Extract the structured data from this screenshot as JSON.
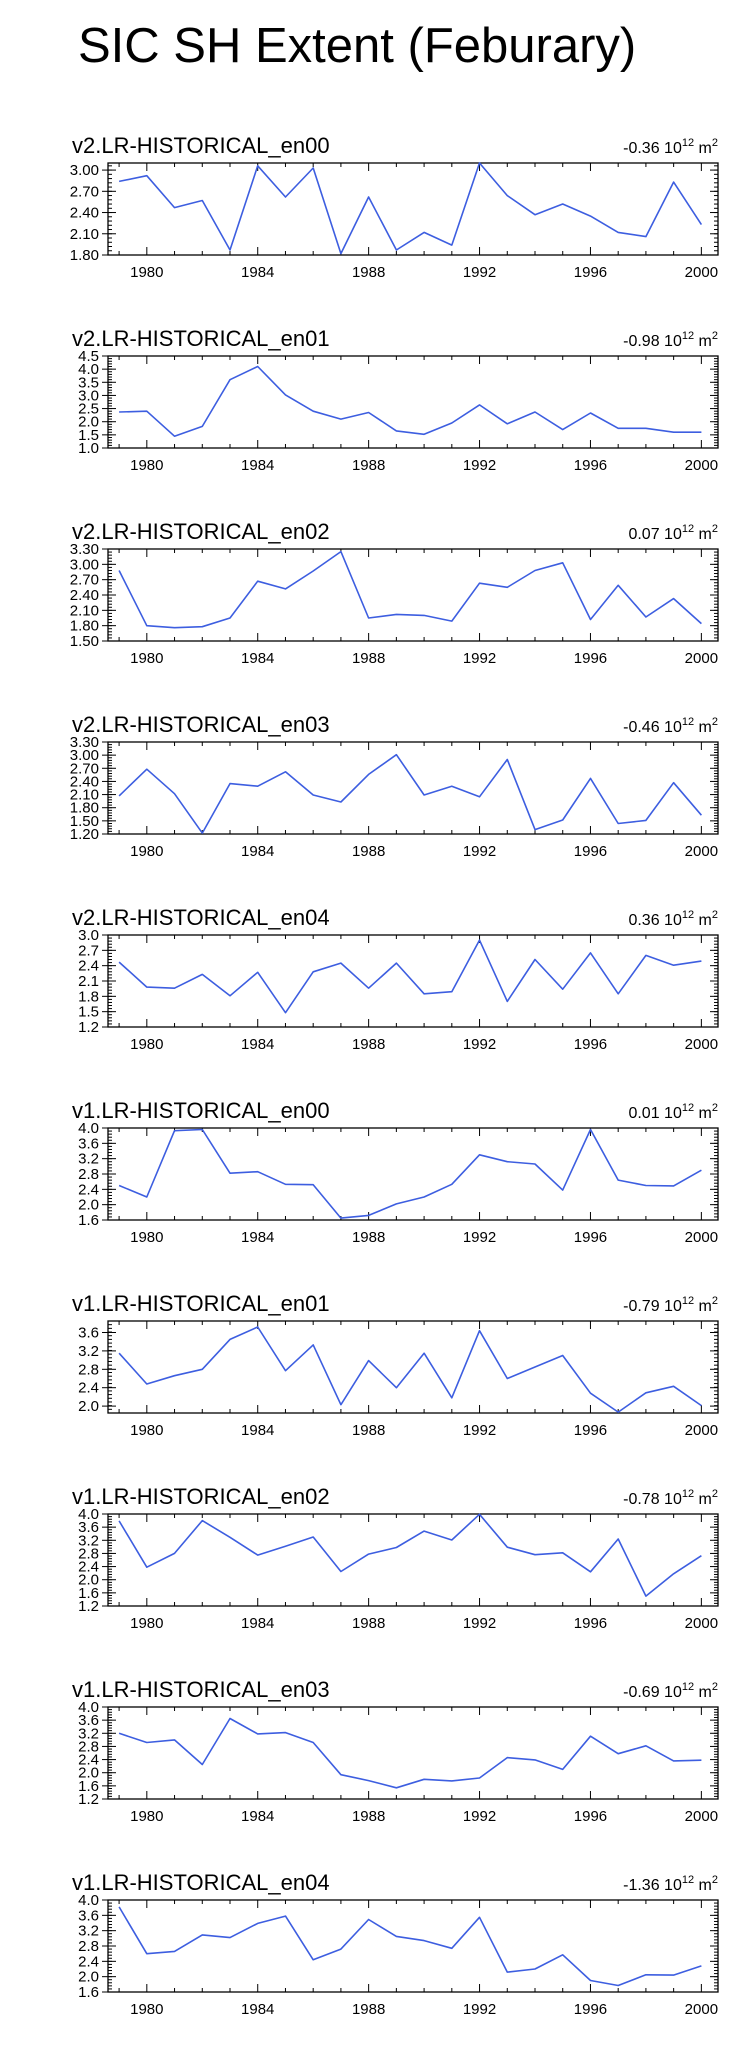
{
  "page": {
    "title": "SIC SH Extent (Feburary)"
  },
  "chart_data": [
    {
      "type": "line",
      "title": "v2.LR-HISTORICAL_en00",
      "trend": "-0.36",
      "trend_exp": "12",
      "trend_unit": "m",
      "trend_unit_exp": "2",
      "x": [
        1979,
        1980,
        1981,
        1982,
        1983,
        1984,
        1985,
        1986,
        1987,
        1988,
        1989,
        1990,
        1991,
        1992,
        1993,
        1994,
        1995,
        1996,
        1997,
        1998,
        1999,
        2000
      ],
      "values": [
        2.84,
        2.92,
        2.47,
        2.57,
        1.87,
        3.06,
        2.62,
        3.03,
        1.82,
        2.62,
        1.87,
        2.12,
        1.94,
        3.1,
        2.64,
        2.37,
        2.52,
        2.35,
        2.12,
        2.06,
        2.83,
        2.23
      ],
      "ylim": [
        1.8,
        3.1
      ],
      "yticks": [
        1.8,
        2.1,
        2.4,
        2.7,
        3.0
      ],
      "ytick_labels": [
        "1.80",
        "2.10",
        "2.40",
        "2.70",
        "3.00"
      ],
      "xlim": [
        1978.6,
        2000.6
      ],
      "xticks": [
        1980,
        1984,
        1988,
        1992,
        1996,
        2000
      ],
      "xtick_labels": [
        "1980",
        "1984",
        "1988",
        "1992",
        "1996",
        "2000"
      ],
      "color": "#3d5ee0"
    },
    {
      "type": "line",
      "title": "v2.LR-HISTORICAL_en01",
      "trend": "-0.98",
      "trend_exp": "12",
      "trend_unit": "m",
      "trend_unit_exp": "2",
      "x": [
        1979,
        1980,
        1981,
        1982,
        1983,
        1984,
        1985,
        1986,
        1987,
        1988,
        1989,
        1990,
        1991,
        1992,
        1993,
        1994,
        1995,
        1996,
        1997,
        1998,
        1999,
        2000
      ],
      "values": [
        2.37,
        2.4,
        1.45,
        1.82,
        3.6,
        4.1,
        3.02,
        2.4,
        2.1,
        2.35,
        1.65,
        1.52,
        1.95,
        2.64,
        1.92,
        2.37,
        1.7,
        2.33,
        1.75,
        1.75,
        1.6,
        1.6
      ],
      "ylim": [
        1.0,
        4.5
      ],
      "yticks": [
        1.0,
        1.5,
        2.0,
        2.5,
        3.0,
        3.5,
        4.0,
        4.5
      ],
      "ytick_labels": [
        "1.0",
        "1.5",
        "2.0",
        "2.5",
        "3.0",
        "3.5",
        "4.0",
        "4.5"
      ],
      "xlim": [
        1978.6,
        2000.6
      ],
      "xticks": [
        1980,
        1984,
        1988,
        1992,
        1996,
        2000
      ],
      "xtick_labels": [
        "1980",
        "1984",
        "1988",
        "1992",
        "1996",
        "2000"
      ],
      "color": "#3d5ee0"
    },
    {
      "type": "line",
      "title": "v2.LR-HISTORICAL_en02",
      "trend": "0.07",
      "trend_exp": "12",
      "trend_unit": "m",
      "trend_unit_exp": "2",
      "x": [
        1979,
        1980,
        1981,
        1982,
        1983,
        1984,
        1985,
        1986,
        1987,
        1988,
        1989,
        1990,
        1991,
        1992,
        1993,
        1994,
        1995,
        1996,
        1997,
        1998,
        1999,
        2000
      ],
      "values": [
        2.88,
        1.8,
        1.76,
        1.78,
        1.95,
        2.67,
        2.52,
        2.87,
        3.25,
        1.95,
        2.02,
        2.0,
        1.89,
        2.63,
        2.55,
        2.88,
        3.03,
        1.92,
        2.59,
        1.97,
        2.33,
        1.84
      ],
      "ylim": [
        1.5,
        3.3
      ],
      "yticks": [
        1.5,
        1.8,
        2.1,
        2.4,
        2.7,
        3.0,
        3.3
      ],
      "ytick_labels": [
        "1.50",
        "1.80",
        "2.10",
        "2.40",
        "2.70",
        "3.00",
        "3.30"
      ],
      "xlim": [
        1978.6,
        2000.6
      ],
      "xticks": [
        1980,
        1984,
        1988,
        1992,
        1996,
        2000
      ],
      "xtick_labels": [
        "1980",
        "1984",
        "1988",
        "1992",
        "1996",
        "2000"
      ],
      "color": "#3d5ee0"
    },
    {
      "type": "line",
      "title": "v2.LR-HISTORICAL_en03",
      "trend": "-0.46",
      "trend_exp": "12",
      "trend_unit": "m",
      "trend_unit_exp": "2",
      "x": [
        1979,
        1980,
        1981,
        1982,
        1983,
        1984,
        1985,
        1986,
        1987,
        1988,
        1989,
        1990,
        1991,
        1992,
        1993,
        1994,
        1995,
        1996,
        1997,
        1998,
        1999,
        2000
      ],
      "values": [
        2.07,
        2.68,
        2.12,
        1.22,
        2.35,
        2.29,
        2.62,
        2.09,
        1.93,
        2.56,
        3.01,
        2.09,
        2.29,
        2.05,
        2.9,
        1.3,
        1.52,
        2.47,
        1.44,
        1.51,
        2.37,
        1.63
      ],
      "ylim": [
        1.2,
        3.3
      ],
      "yticks": [
        1.2,
        1.5,
        1.8,
        2.1,
        2.4,
        2.7,
        3.0,
        3.3
      ],
      "ytick_labels": [
        "1.20",
        "1.50",
        "1.80",
        "2.10",
        "2.40",
        "2.70",
        "3.00",
        "3.30"
      ],
      "xlim": [
        1978.6,
        2000.6
      ],
      "xticks": [
        1980,
        1984,
        1988,
        1992,
        1996,
        2000
      ],
      "xtick_labels": [
        "1980",
        "1984",
        "1988",
        "1992",
        "1996",
        "2000"
      ],
      "color": "#3d5ee0"
    },
    {
      "type": "line",
      "title": "v2.LR-HISTORICAL_en04",
      "trend": "0.36",
      "trend_exp": "12",
      "trend_unit": "m",
      "trend_unit_exp": "2",
      "x": [
        1979,
        1980,
        1981,
        1982,
        1983,
        1984,
        1985,
        1986,
        1987,
        1988,
        1989,
        1990,
        1991,
        1992,
        1993,
        1994,
        1995,
        1996,
        1997,
        1998,
        1999,
        2000
      ],
      "values": [
        2.47,
        1.98,
        1.96,
        2.23,
        1.81,
        2.27,
        1.48,
        2.28,
        2.45,
        1.96,
        2.45,
        1.85,
        1.89,
        2.9,
        1.7,
        2.52,
        1.94,
        2.65,
        1.85,
        2.6,
        2.41,
        2.49
      ],
      "ylim": [
        1.2,
        3.0
      ],
      "yticks": [
        1.2,
        1.5,
        1.8,
        2.1,
        2.4,
        2.7,
        3.0
      ],
      "ytick_labels": [
        "1.2",
        "1.5",
        "1.8",
        "2.1",
        "2.4",
        "2.7",
        "3.0"
      ],
      "xlim": [
        1978.6,
        2000.6
      ],
      "xticks": [
        1980,
        1984,
        1988,
        1992,
        1996,
        2000
      ],
      "xtick_labels": [
        "1980",
        "1984",
        "1988",
        "1992",
        "1996",
        "2000"
      ],
      "color": "#3d5ee0"
    },
    {
      "type": "line",
      "title": "v1.LR-HISTORICAL_en00",
      "trend": "0.01",
      "trend_exp": "12",
      "trend_unit": "m",
      "trend_unit_exp": "2",
      "x": [
        1979,
        1980,
        1981,
        1982,
        1983,
        1984,
        1985,
        1986,
        1987,
        1988,
        1989,
        1990,
        1991,
        1992,
        1993,
        1994,
        1995,
        1996,
        1997,
        1998,
        1999,
        2000
      ],
      "values": [
        2.5,
        2.2,
        3.93,
        3.96,
        2.82,
        2.86,
        2.53,
        2.52,
        1.65,
        1.72,
        2.02,
        2.2,
        2.53,
        3.3,
        3.12,
        3.06,
        2.38,
        3.96,
        2.64,
        2.5,
        2.49,
        2.9
      ],
      "ylim": [
        1.6,
        4.0
      ],
      "yticks": [
        1.6,
        2.0,
        2.4,
        2.8,
        3.2,
        3.6,
        4.0
      ],
      "ytick_labels": [
        "1.6",
        "2.0",
        "2.4",
        "2.8",
        "3.2",
        "3.6",
        "4.0"
      ],
      "xlim": [
        1978.6,
        2000.6
      ],
      "xticks": [
        1980,
        1984,
        1988,
        1992,
        1996,
        2000
      ],
      "xtick_labels": [
        "1980",
        "1984",
        "1988",
        "1992",
        "1996",
        "2000"
      ],
      "color": "#3d5ee0"
    },
    {
      "type": "line",
      "title": "v1.LR-HISTORICAL_en01",
      "trend": "-0.79",
      "trend_exp": "12",
      "trend_unit": "m",
      "trend_unit_exp": "2",
      "x": [
        1979,
        1980,
        1981,
        1982,
        1983,
        1984,
        1985,
        1986,
        1987,
        1988,
        1989,
        1990,
        1991,
        1992,
        1993,
        1994,
        1995,
        1996,
        1997,
        1998,
        1999,
        2000
      ],
      "values": [
        3.15,
        2.48,
        2.66,
        2.8,
        3.45,
        3.72,
        2.77,
        3.33,
        2.03,
        2.99,
        2.4,
        3.15,
        2.18,
        3.64,
        2.6,
        2.85,
        3.1,
        2.28,
        1.87,
        2.29,
        2.43,
        2.01
      ],
      "ylim": [
        1.85,
        3.85
      ],
      "yticks": [
        2.0,
        2.4,
        2.8,
        3.2,
        3.6
      ],
      "ytick_labels": [
        "2.0",
        "2.4",
        "2.8",
        "3.2",
        "3.6"
      ],
      "xlim": [
        1978.6,
        2000.6
      ],
      "xticks": [
        1980,
        1984,
        1988,
        1992,
        1996,
        2000
      ],
      "xtick_labels": [
        "1980",
        "1984",
        "1988",
        "1992",
        "1996",
        "2000"
      ],
      "color": "#3d5ee0"
    },
    {
      "type": "line",
      "title": "v1.LR-HISTORICAL_en02",
      "trend": "-0.78",
      "trend_exp": "12",
      "trend_unit": "m",
      "trend_unit_exp": "2",
      "x": [
        1979,
        1980,
        1981,
        1982,
        1983,
        1984,
        1985,
        1986,
        1987,
        1988,
        1989,
        1990,
        1991,
        1992,
        1993,
        1994,
        1995,
        1996,
        1997,
        1998,
        1999,
        2000
      ],
      "values": [
        3.79,
        2.38,
        2.8,
        3.8,
        3.29,
        2.75,
        3.02,
        3.3,
        2.25,
        2.78,
        2.98,
        3.48,
        3.21,
        3.99,
        2.99,
        2.76,
        2.82,
        2.24,
        3.24,
        1.5,
        2.18,
        2.73
      ],
      "ylim": [
        1.2,
        4.0
      ],
      "yticks": [
        1.2,
        1.6,
        2.0,
        2.4,
        2.8,
        3.2,
        3.6,
        4.0
      ],
      "ytick_labels": [
        "1.2",
        "1.6",
        "2.0",
        "2.4",
        "2.8",
        "3.2",
        "3.6",
        "4.0"
      ],
      "xlim": [
        1978.6,
        2000.6
      ],
      "xticks": [
        1980,
        1984,
        1988,
        1992,
        1996,
        2000
      ],
      "xtick_labels": [
        "1980",
        "1984",
        "1988",
        "1992",
        "1996",
        "2000"
      ],
      "color": "#3d5ee0"
    },
    {
      "type": "line",
      "title": "v1.LR-HISTORICAL_en03",
      "trend": "-0.69",
      "trend_exp": "12",
      "trend_unit": "m",
      "trend_unit_exp": "2",
      "x": [
        1979,
        1980,
        1981,
        1982,
        1983,
        1984,
        1985,
        1986,
        1987,
        1988,
        1989,
        1990,
        1991,
        1992,
        1993,
        1994,
        1995,
        1996,
        1997,
        1998,
        1999,
        2000
      ],
      "values": [
        3.2,
        2.92,
        3.0,
        2.25,
        3.65,
        3.18,
        3.22,
        2.92,
        1.94,
        1.76,
        1.54,
        1.8,
        1.75,
        1.84,
        2.46,
        2.39,
        2.1,
        3.11,
        2.58,
        2.82,
        2.36,
        2.38
      ],
      "ylim": [
        1.2,
        4.0
      ],
      "yticks": [
        1.2,
        1.6,
        2.0,
        2.4,
        2.8,
        3.2,
        3.6,
        4.0
      ],
      "ytick_labels": [
        "1.2",
        "1.6",
        "2.0",
        "2.4",
        "2.8",
        "3.2",
        "3.6",
        "4.0"
      ],
      "xlim": [
        1978.6,
        2000.6
      ],
      "xticks": [
        1980,
        1984,
        1988,
        1992,
        1996,
        2000
      ],
      "xtick_labels": [
        "1980",
        "1984",
        "1988",
        "1992",
        "1996",
        "2000"
      ],
      "color": "#3d5ee0"
    },
    {
      "type": "line",
      "title": "v1.LR-HISTORICAL_en04",
      "trend": "-1.36",
      "trend_exp": "12",
      "trend_unit": "m",
      "trend_unit_exp": "2",
      "x": [
        1979,
        1980,
        1981,
        1982,
        1983,
        1984,
        1985,
        1986,
        1987,
        1988,
        1989,
        1990,
        1991,
        1992,
        1993,
        1994,
        1995,
        1996,
        1997,
        1998,
        1999,
        2000
      ],
      "values": [
        3.82,
        2.6,
        2.66,
        3.09,
        3.02,
        3.39,
        3.58,
        2.44,
        2.72,
        3.49,
        3.05,
        2.94,
        2.74,
        3.55,
        2.12,
        2.2,
        2.57,
        1.9,
        1.77,
        2.05,
        2.04,
        2.28
      ],
      "ylim": [
        1.6,
        4.0
      ],
      "yticks": [
        1.6,
        2.0,
        2.4,
        2.8,
        3.2,
        3.6,
        4.0
      ],
      "ytick_labels": [
        "1.6",
        "2.0",
        "2.4",
        "2.8",
        "3.2",
        "3.6",
        "4.0"
      ],
      "xlim": [
        1978.6,
        2000.6
      ],
      "xticks": [
        1980,
        1984,
        1988,
        1992,
        1996,
        2000
      ],
      "xtick_labels": [
        "1980",
        "1984",
        "1988",
        "1992",
        "1996",
        "2000"
      ],
      "color": "#3d5ee0"
    }
  ]
}
